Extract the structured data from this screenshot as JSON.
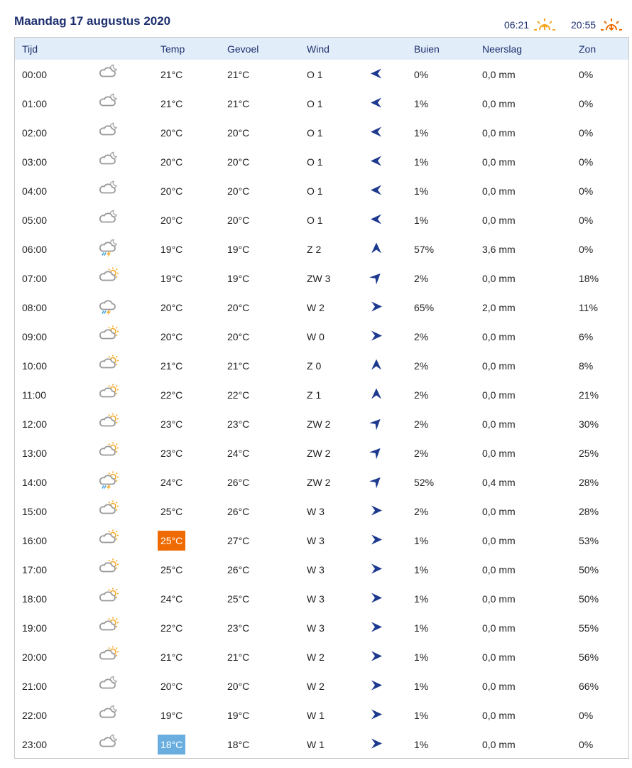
{
  "header": {
    "title": "Maandag 17 augustus 2020",
    "sunrise": "06:21",
    "sunset": "20:55",
    "sunrise_icon": "sunrise-icon",
    "sunset_icon": "sunset-icon"
  },
  "colors": {
    "accent": "#1d2f6f",
    "header_bg": "#e1edf8",
    "highlight_max": "#ef6a00",
    "highlight_min": "#6aaee0",
    "sun": "#f5a623"
  },
  "columns": [
    "Tijd",
    "",
    "Temp",
    "Gevoel",
    "Wind",
    "",
    "Buien",
    "Neerslag",
    "Zon"
  ],
  "rows": [
    {
      "time": "00:00",
      "icon": "night-cloud",
      "temp": "21°C",
      "feel": "21°C",
      "wind": "O 1",
      "dir": "O",
      "showers": "0%",
      "precip": "0,0 mm",
      "sun": "0%"
    },
    {
      "time": "01:00",
      "icon": "night-cloud",
      "temp": "21°C",
      "feel": "21°C",
      "wind": "O 1",
      "dir": "O",
      "showers": "1%",
      "precip": "0,0 mm",
      "sun": "0%"
    },
    {
      "time": "02:00",
      "icon": "night-cloud",
      "temp": "20°C",
      "feel": "20°C",
      "wind": "O 1",
      "dir": "O",
      "showers": "1%",
      "precip": "0,0 mm",
      "sun": "0%"
    },
    {
      "time": "03:00",
      "icon": "night-cloud",
      "temp": "20°C",
      "feel": "20°C",
      "wind": "O 1",
      "dir": "O",
      "showers": "1%",
      "precip": "0,0 mm",
      "sun": "0%"
    },
    {
      "time": "04:00",
      "icon": "night-cloud",
      "temp": "20°C",
      "feel": "20°C",
      "wind": "O 1",
      "dir": "O",
      "showers": "1%",
      "precip": "0,0 mm",
      "sun": "0%"
    },
    {
      "time": "05:00",
      "icon": "night-cloud",
      "temp": "20°C",
      "feel": "20°C",
      "wind": "O 1",
      "dir": "O",
      "showers": "1%",
      "precip": "0,0 mm",
      "sun": "0%"
    },
    {
      "time": "06:00",
      "icon": "night-thunder",
      "temp": "19°C",
      "feel": "19°C",
      "wind": "Z 2",
      "dir": "Z",
      "showers": "57%",
      "precip": "3,6 mm",
      "sun": "0%"
    },
    {
      "time": "07:00",
      "icon": "sun-cloud",
      "temp": "19°C",
      "feel": "19°C",
      "wind": "ZW 3",
      "dir": "ZW",
      "showers": "2%",
      "precip": "0,0 mm",
      "sun": "18%"
    },
    {
      "time": "08:00",
      "icon": "thunder",
      "temp": "20°C",
      "feel": "20°C",
      "wind": "W 2",
      "dir": "W",
      "showers": "65%",
      "precip": "2,0 mm",
      "sun": "11%"
    },
    {
      "time": "09:00",
      "icon": "sun-cloud",
      "temp": "20°C",
      "feel": "20°C",
      "wind": "W 0",
      "dir": "W",
      "showers": "2%",
      "precip": "0,0 mm",
      "sun": "6%"
    },
    {
      "time": "10:00",
      "icon": "sun-cloud",
      "temp": "21°C",
      "feel": "21°C",
      "wind": "Z 0",
      "dir": "Z",
      "showers": "2%",
      "precip": "0,0 mm",
      "sun": "8%"
    },
    {
      "time": "11:00",
      "icon": "sun-cloud",
      "temp": "22°C",
      "feel": "22°C",
      "wind": "Z 1",
      "dir": "Z",
      "showers": "2%",
      "precip": "0,0 mm",
      "sun": "21%"
    },
    {
      "time": "12:00",
      "icon": "sun-cloud",
      "temp": "23°C",
      "feel": "23°C",
      "wind": "ZW 2",
      "dir": "ZW",
      "showers": "2%",
      "precip": "0,0 mm",
      "sun": "30%"
    },
    {
      "time": "13:00",
      "icon": "sun-cloud",
      "temp": "23°C",
      "feel": "24°C",
      "wind": "ZW 2",
      "dir": "ZW",
      "showers": "2%",
      "precip": "0,0 mm",
      "sun": "25%"
    },
    {
      "time": "14:00",
      "icon": "sun-thunder",
      "temp": "24°C",
      "feel": "26°C",
      "wind": "ZW 2",
      "dir": "ZW",
      "showers": "52%",
      "precip": "0,4 mm",
      "sun": "28%"
    },
    {
      "time": "15:00",
      "icon": "sun-small-cloud",
      "temp": "25°C",
      "feel": "26°C",
      "wind": "W 3",
      "dir": "W",
      "showers": "2%",
      "precip": "0,0 mm",
      "sun": "28%"
    },
    {
      "time": "16:00",
      "icon": "sun-small-cloud",
      "temp": "25°C",
      "feel": "27°C",
      "wind": "W 3",
      "dir": "W",
      "showers": "1%",
      "precip": "0,0 mm",
      "sun": "53%",
      "highlight": "max"
    },
    {
      "time": "17:00",
      "icon": "sun-small-cloud",
      "temp": "25°C",
      "feel": "26°C",
      "wind": "W 3",
      "dir": "W",
      "showers": "1%",
      "precip": "0,0 mm",
      "sun": "50%"
    },
    {
      "time": "18:00",
      "icon": "sun-small-cloud",
      "temp": "24°C",
      "feel": "25°C",
      "wind": "W 3",
      "dir": "W",
      "showers": "1%",
      "precip": "0,0 mm",
      "sun": "50%"
    },
    {
      "time": "19:00",
      "icon": "sun-small-cloud",
      "temp": "22°C",
      "feel": "23°C",
      "wind": "W 3",
      "dir": "W",
      "showers": "1%",
      "precip": "0,0 mm",
      "sun": "55%"
    },
    {
      "time": "20:00",
      "icon": "sun-small-cloud",
      "temp": "21°C",
      "feel": "21°C",
      "wind": "W 2",
      "dir": "W",
      "showers": "1%",
      "precip": "0,0 mm",
      "sun": "56%"
    },
    {
      "time": "21:00",
      "icon": "night-cloud",
      "temp": "20°C",
      "feel": "20°C",
      "wind": "W 2",
      "dir": "W",
      "showers": "1%",
      "precip": "0,0 mm",
      "sun": "66%"
    },
    {
      "time": "22:00",
      "icon": "night-cloud",
      "temp": "19°C",
      "feel": "19°C",
      "wind": "W 1",
      "dir": "W",
      "showers": "1%",
      "precip": "0,0 mm",
      "sun": "0%"
    },
    {
      "time": "23:00",
      "icon": "night-cloud",
      "temp": "18°C",
      "feel": "18°C",
      "wind": "W 1",
      "dir": "W",
      "showers": "1%",
      "precip": "0,0 mm",
      "sun": "0%",
      "highlight": "min"
    }
  ]
}
